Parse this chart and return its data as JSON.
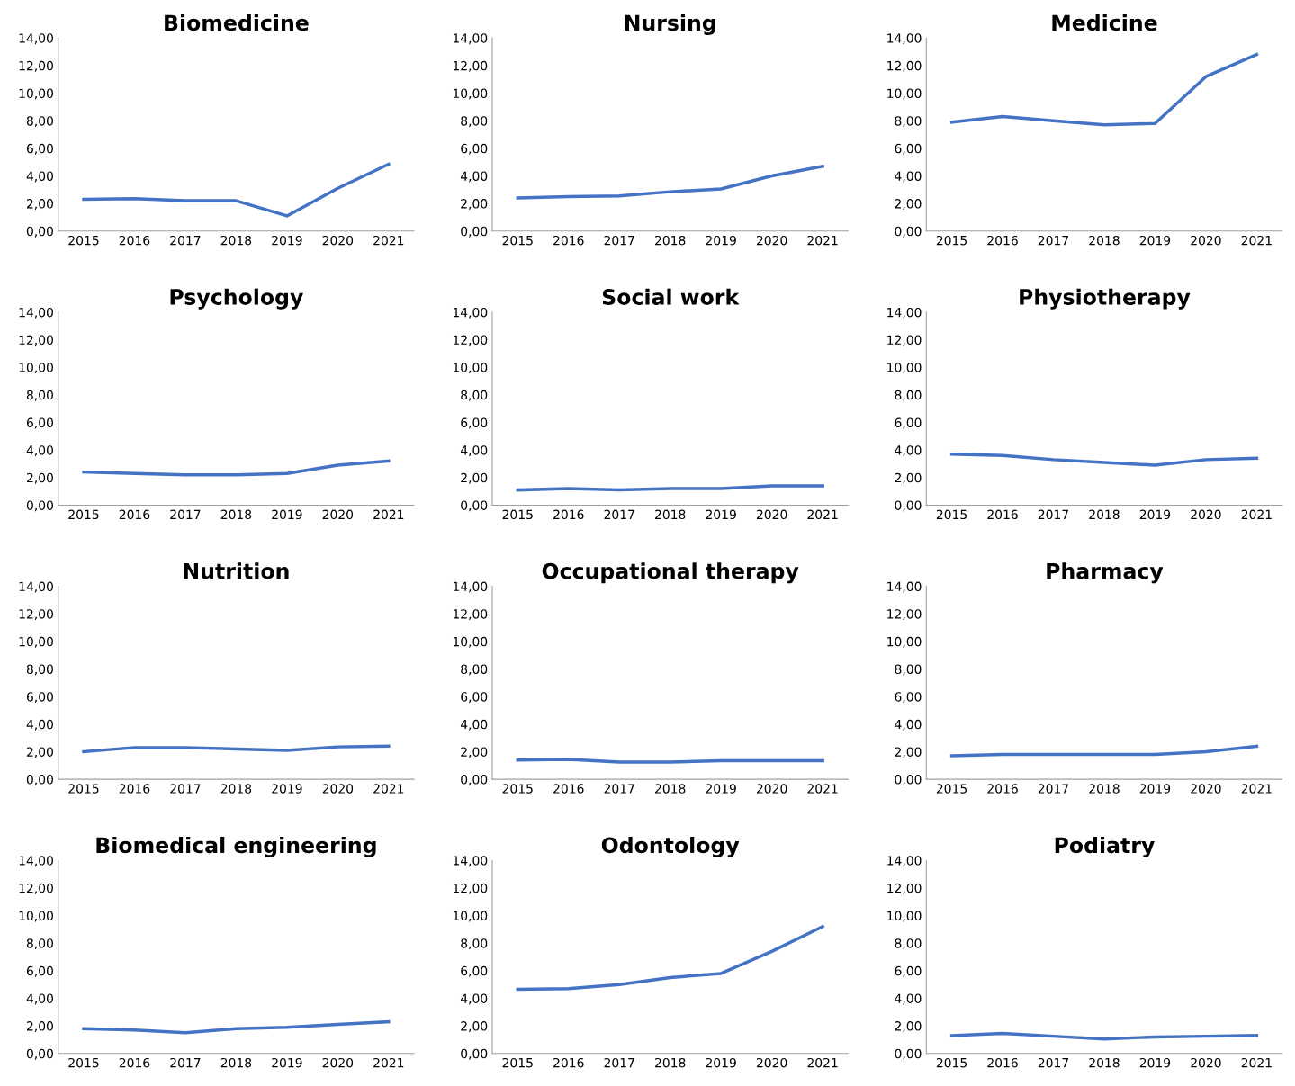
{
  "chart_data": [
    {
      "type": "line",
      "title": "Biomedicine",
      "categories": [
        "2015",
        "2016",
        "2017",
        "2018",
        "2019",
        "2020",
        "2021"
      ],
      "series": [
        {
          "color": "#4472c4",
          "values": [
            2.3,
            2.35,
            2.2,
            2.2,
            1.1,
            3.1,
            4.85
          ]
        }
      ],
      "ylim": [
        0,
        14
      ],
      "yticks": [
        {
          "value": 0,
          "label": "0,00"
        },
        {
          "value": 2,
          "label": "2,00"
        },
        {
          "value": 4,
          "label": "4,00"
        },
        {
          "value": 6,
          "label": "6,00"
        },
        {
          "value": 8,
          "label": "8,00"
        },
        {
          "value": 10,
          "label": "10,00"
        },
        {
          "value": 12,
          "label": "12,00"
        },
        {
          "value": 14,
          "label": "14,00"
        }
      ],
      "grid": false,
      "marker": "none",
      "line_style": "solid"
    },
    {
      "type": "line",
      "title": "Nursing",
      "categories": [
        "2015",
        "2016",
        "2017",
        "2018",
        "2019",
        "2020",
        "2021"
      ],
      "series": [
        {
          "color": "#4472c4",
          "values": [
            2.4,
            2.5,
            2.55,
            2.85,
            3.05,
            4.0,
            4.7
          ]
        }
      ],
      "ylim": [
        0,
        14
      ],
      "yticks": [
        {
          "value": 0,
          "label": "0,00"
        },
        {
          "value": 2,
          "label": "2,00"
        },
        {
          "value": 4,
          "label": "4,00"
        },
        {
          "value": 6,
          "label": "6,00"
        },
        {
          "value": 8,
          "label": "8,00"
        },
        {
          "value": 10,
          "label": "10,00"
        },
        {
          "value": 12,
          "label": "12,00"
        },
        {
          "value": 14,
          "label": "14,00"
        }
      ],
      "grid": false,
      "marker": "none",
      "line_style": "solid"
    },
    {
      "type": "line",
      "title": "Medicine",
      "categories": [
        "2015",
        "2016",
        "2017",
        "2018",
        "2019",
        "2020",
        "2021"
      ],
      "series": [
        {
          "color": "#4472c4",
          "values": [
            7.9,
            8.3,
            8.0,
            7.7,
            7.8,
            11.2,
            12.8
          ]
        }
      ],
      "ylim": [
        0,
        14
      ],
      "yticks": [
        {
          "value": 0,
          "label": "0,00"
        },
        {
          "value": 2,
          "label": "2,00"
        },
        {
          "value": 4,
          "label": "4,00"
        },
        {
          "value": 6,
          "label": "6,00"
        },
        {
          "value": 8,
          "label": "8,00"
        },
        {
          "value": 10,
          "label": "10,00"
        },
        {
          "value": 12,
          "label": "12,00"
        },
        {
          "value": 14,
          "label": "14,00"
        }
      ],
      "grid": false,
      "marker": "none",
      "line_style": "solid"
    },
    {
      "type": "line",
      "title": "Psychology",
      "categories": [
        "2015",
        "2016",
        "2017",
        "2018",
        "2019",
        "2020",
        "2021"
      ],
      "series": [
        {
          "color": "#4472c4",
          "values": [
            2.4,
            2.3,
            2.2,
            2.2,
            2.3,
            2.9,
            3.2
          ]
        }
      ],
      "ylim": [
        0,
        14
      ],
      "yticks": [
        {
          "value": 0,
          "label": "0,00"
        },
        {
          "value": 2,
          "label": "2,00"
        },
        {
          "value": 4,
          "label": "4,00"
        },
        {
          "value": 6,
          "label": "6,00"
        },
        {
          "value": 8,
          "label": "8,00"
        },
        {
          "value": 10,
          "label": "10,00"
        },
        {
          "value": 12,
          "label": "12,00"
        },
        {
          "value": 14,
          "label": "14,00"
        }
      ],
      "grid": false,
      "marker": "none",
      "line_style": "solid"
    },
    {
      "type": "line",
      "title": "Social work",
      "categories": [
        "2015",
        "2016",
        "2017",
        "2018",
        "2019",
        "2020",
        "2021"
      ],
      "series": [
        {
          "color": "#4472c4",
          "values": [
            1.1,
            1.2,
            1.1,
            1.2,
            1.2,
            1.4,
            1.4
          ]
        }
      ],
      "ylim": [
        0,
        14
      ],
      "yticks": [
        {
          "value": 0,
          "label": "0,00"
        },
        {
          "value": 2,
          "label": "2,00"
        },
        {
          "value": 4,
          "label": "4,00"
        },
        {
          "value": 6,
          "label": "6,00"
        },
        {
          "value": 8,
          "label": "8,00"
        },
        {
          "value": 10,
          "label": "10,00"
        },
        {
          "value": 12,
          "label": "12,00"
        },
        {
          "value": 14,
          "label": "14,00"
        }
      ],
      "grid": false,
      "marker": "none",
      "line_style": "solid"
    },
    {
      "type": "line",
      "title": "Physiotherapy",
      "categories": [
        "2015",
        "2016",
        "2017",
        "2018",
        "2019",
        "2020",
        "2021"
      ],
      "series": [
        {
          "color": "#4472c4",
          "values": [
            3.7,
            3.6,
            3.3,
            3.1,
            2.9,
            3.3,
            3.4
          ]
        }
      ],
      "ylim": [
        0,
        14
      ],
      "yticks": [
        {
          "value": 0,
          "label": "0,00"
        },
        {
          "value": 2,
          "label": "2,00"
        },
        {
          "value": 4,
          "label": "4,00"
        },
        {
          "value": 6,
          "label": "6,00"
        },
        {
          "value": 8,
          "label": "8,00"
        },
        {
          "value": 10,
          "label": "10,00"
        },
        {
          "value": 12,
          "label": "12,00"
        },
        {
          "value": 14,
          "label": "14,00"
        }
      ],
      "grid": false,
      "marker": "none",
      "line_style": "solid"
    },
    {
      "type": "line",
      "title": "Nutrition",
      "categories": [
        "2015",
        "2016",
        "2017",
        "2018",
        "2019",
        "2020",
        "2021"
      ],
      "series": [
        {
          "color": "#4472c4",
          "values": [
            2.0,
            2.3,
            2.3,
            2.2,
            2.1,
            2.35,
            2.4
          ]
        }
      ],
      "ylim": [
        0,
        14
      ],
      "yticks": [
        {
          "value": 0,
          "label": "0,00"
        },
        {
          "value": 2,
          "label": "2,00"
        },
        {
          "value": 4,
          "label": "4,00"
        },
        {
          "value": 6,
          "label": "6,00"
        },
        {
          "value": 8,
          "label": "8,00"
        },
        {
          "value": 10,
          "label": "10,00"
        },
        {
          "value": 12,
          "label": "12,00"
        },
        {
          "value": 14,
          "label": "14,00"
        }
      ],
      "grid": false,
      "marker": "none",
      "line_style": "solid"
    },
    {
      "type": "line",
      "title": "Occupational therapy",
      "categories": [
        "2015",
        "2016",
        "2017",
        "2018",
        "2019",
        "2020",
        "2021"
      ],
      "series": [
        {
          "color": "#4472c4",
          "values": [
            1.4,
            1.45,
            1.25,
            1.25,
            1.35,
            1.35,
            1.35
          ]
        }
      ],
      "ylim": [
        0,
        14
      ],
      "yticks": [
        {
          "value": 0,
          "label": "0,00"
        },
        {
          "value": 2,
          "label": "2,00"
        },
        {
          "value": 4,
          "label": "4,00"
        },
        {
          "value": 6,
          "label": "6,00"
        },
        {
          "value": 8,
          "label": "8,00"
        },
        {
          "value": 10,
          "label": "10,00"
        },
        {
          "value": 12,
          "label": "12,00"
        },
        {
          "value": 14,
          "label": "14,00"
        }
      ],
      "grid": false,
      "marker": "none",
      "line_style": "solid"
    },
    {
      "type": "line",
      "title": "Pharmacy",
      "categories": [
        "2015",
        "2016",
        "2017",
        "2018",
        "2019",
        "2020",
        "2021"
      ],
      "series": [
        {
          "color": "#4472c4",
          "values": [
            1.7,
            1.8,
            1.8,
            1.8,
            1.8,
            2.0,
            2.4
          ]
        }
      ],
      "ylim": [
        0,
        14
      ],
      "yticks": [
        {
          "value": 0,
          "label": "0,00"
        },
        {
          "value": 2,
          "label": "2,00"
        },
        {
          "value": 4,
          "label": "4,00"
        },
        {
          "value": 6,
          "label": "6,00"
        },
        {
          "value": 8,
          "label": "8,00"
        },
        {
          "value": 10,
          "label": "10,00"
        },
        {
          "value": 12,
          "label": "12,00"
        },
        {
          "value": 14,
          "label": "14,00"
        }
      ],
      "grid": false,
      "marker": "none",
      "line_style": "solid"
    },
    {
      "type": "line",
      "title": "Biomedical engineering",
      "categories": [
        "2015",
        "2016",
        "2017",
        "2018",
        "2019",
        "2020",
        "2021"
      ],
      "series": [
        {
          "color": "#4472c4",
          "values": [
            1.8,
            1.7,
            1.5,
            1.8,
            1.9,
            2.1,
            2.3
          ]
        }
      ],
      "ylim": [
        0,
        14
      ],
      "yticks": [
        {
          "value": 0,
          "label": "0,00"
        },
        {
          "value": 2,
          "label": "2,00"
        },
        {
          "value": 4,
          "label": "4,00"
        },
        {
          "value": 6,
          "label": "6,00"
        },
        {
          "value": 8,
          "label": "8,00"
        },
        {
          "value": 10,
          "label": "10,00"
        },
        {
          "value": 12,
          "label": "12,00"
        },
        {
          "value": 14,
          "label": "14,00"
        }
      ],
      "grid": false,
      "marker": "none",
      "line_style": "solid"
    },
    {
      "type": "line",
      "title": "Odontology",
      "categories": [
        "2015",
        "2016",
        "2017",
        "2018",
        "2019",
        "2020",
        "2021"
      ],
      "series": [
        {
          "color": "#4472c4",
          "values": [
            4.65,
            4.7,
            5.0,
            5.5,
            5.8,
            7.4,
            9.2
          ]
        }
      ],
      "ylim": [
        0,
        14
      ],
      "yticks": [
        {
          "value": 0,
          "label": "0,00"
        },
        {
          "value": 2,
          "label": "2,00"
        },
        {
          "value": 4,
          "label": "4,00"
        },
        {
          "value": 6,
          "label": "6,00"
        },
        {
          "value": 8,
          "label": "8,00"
        },
        {
          "value": 10,
          "label": "10,00"
        },
        {
          "value": 12,
          "label": "12,00"
        },
        {
          "value": 14,
          "label": "14,00"
        }
      ],
      "grid": false,
      "marker": "none",
      "line_style": "solid"
    },
    {
      "type": "line",
      "title": "Podiatry",
      "categories": [
        "2015",
        "2016",
        "2017",
        "2018",
        "2019",
        "2020",
        "2021"
      ],
      "series": [
        {
          "color": "#4472c4",
          "values": [
            1.3,
            1.45,
            1.25,
            1.05,
            1.2,
            1.25,
            1.3
          ]
        }
      ],
      "ylim": [
        0,
        14
      ],
      "yticks": [
        {
          "value": 0,
          "label": "0,00"
        },
        {
          "value": 2,
          "label": "2,00"
        },
        {
          "value": 4,
          "label": "4,00"
        },
        {
          "value": 6,
          "label": "6,00"
        },
        {
          "value": 8,
          "label": "8,00"
        },
        {
          "value": 10,
          "label": "10,00"
        },
        {
          "value": 12,
          "label": "12,00"
        },
        {
          "value": 14,
          "label": "14,00"
        }
      ],
      "grid": false,
      "marker": "none",
      "line_style": "solid"
    }
  ]
}
